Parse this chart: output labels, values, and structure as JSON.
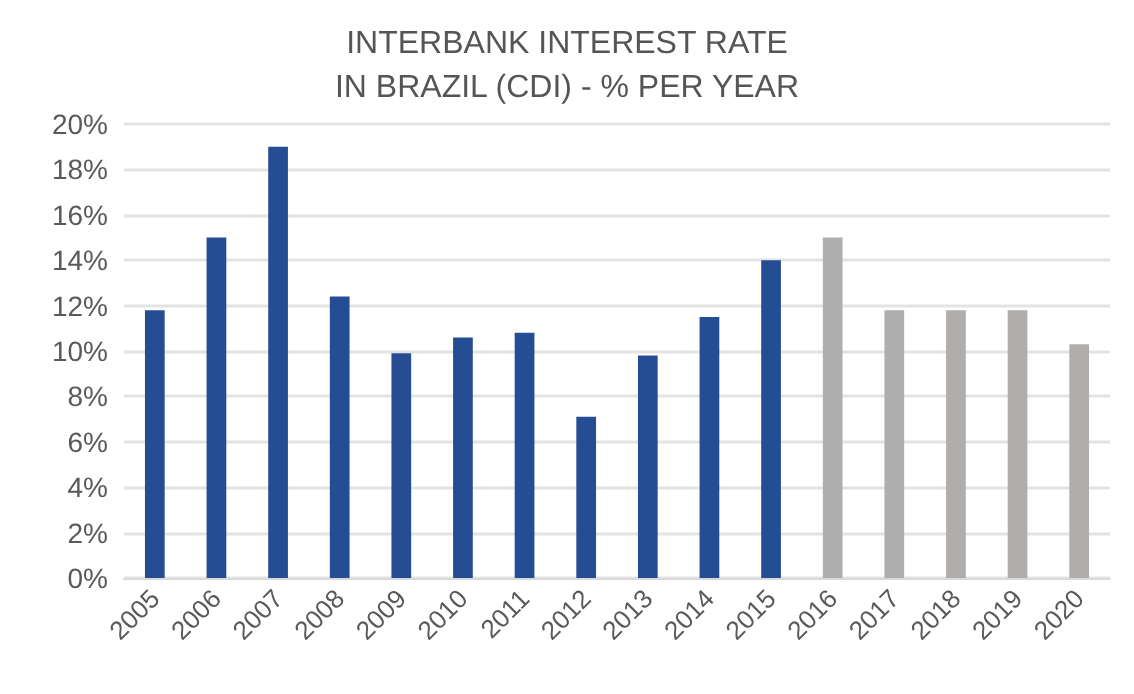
{
  "chart_data": {
    "type": "bar",
    "title": "INTERBANK INTEREST RATE\nIN BRAZIL (CDI) - % PER YEAR",
    "categories": [
      "2005",
      "2006",
      "2007",
      "2008",
      "2009",
      "2010",
      "2011",
      "2012",
      "2013",
      "2014",
      "2015",
      "2016",
      "2017",
      "2018",
      "2019",
      "2020"
    ],
    "values": [
      11.8,
      15.0,
      19.0,
      12.4,
      9.9,
      10.6,
      10.8,
      7.1,
      9.8,
      11.5,
      14.0,
      15.0,
      11.8,
      11.8,
      11.8,
      10.3
    ],
    "colors": [
      "#244d93",
      "#244d93",
      "#244d93",
      "#244d93",
      "#244d93",
      "#244d93",
      "#244d93",
      "#244d93",
      "#244d93",
      "#244d93",
      "#244d93",
      "#b0aeac",
      "#b0aeac",
      "#b0aeac",
      "#b0aeac",
      "#b0aeac"
    ],
    "ylim": [
      0,
      20
    ],
    "yticks": [
      {
        "value": 0,
        "label": "0%"
      },
      {
        "value": 2,
        "label": "2%"
      },
      {
        "value": 4,
        "label": "4%"
      },
      {
        "value": 6,
        "label": "6%"
      },
      {
        "value": 8,
        "label": "8%"
      },
      {
        "value": 10,
        "label": "10%"
      },
      {
        "value": 12,
        "label": "12%"
      },
      {
        "value": 14,
        "label": "14%"
      },
      {
        "value": 16,
        "label": "16%"
      },
      {
        "value": 18,
        "label": "18%"
      },
      {
        "value": 20,
        "label": "20%"
      }
    ],
    "grid": "y"
  }
}
